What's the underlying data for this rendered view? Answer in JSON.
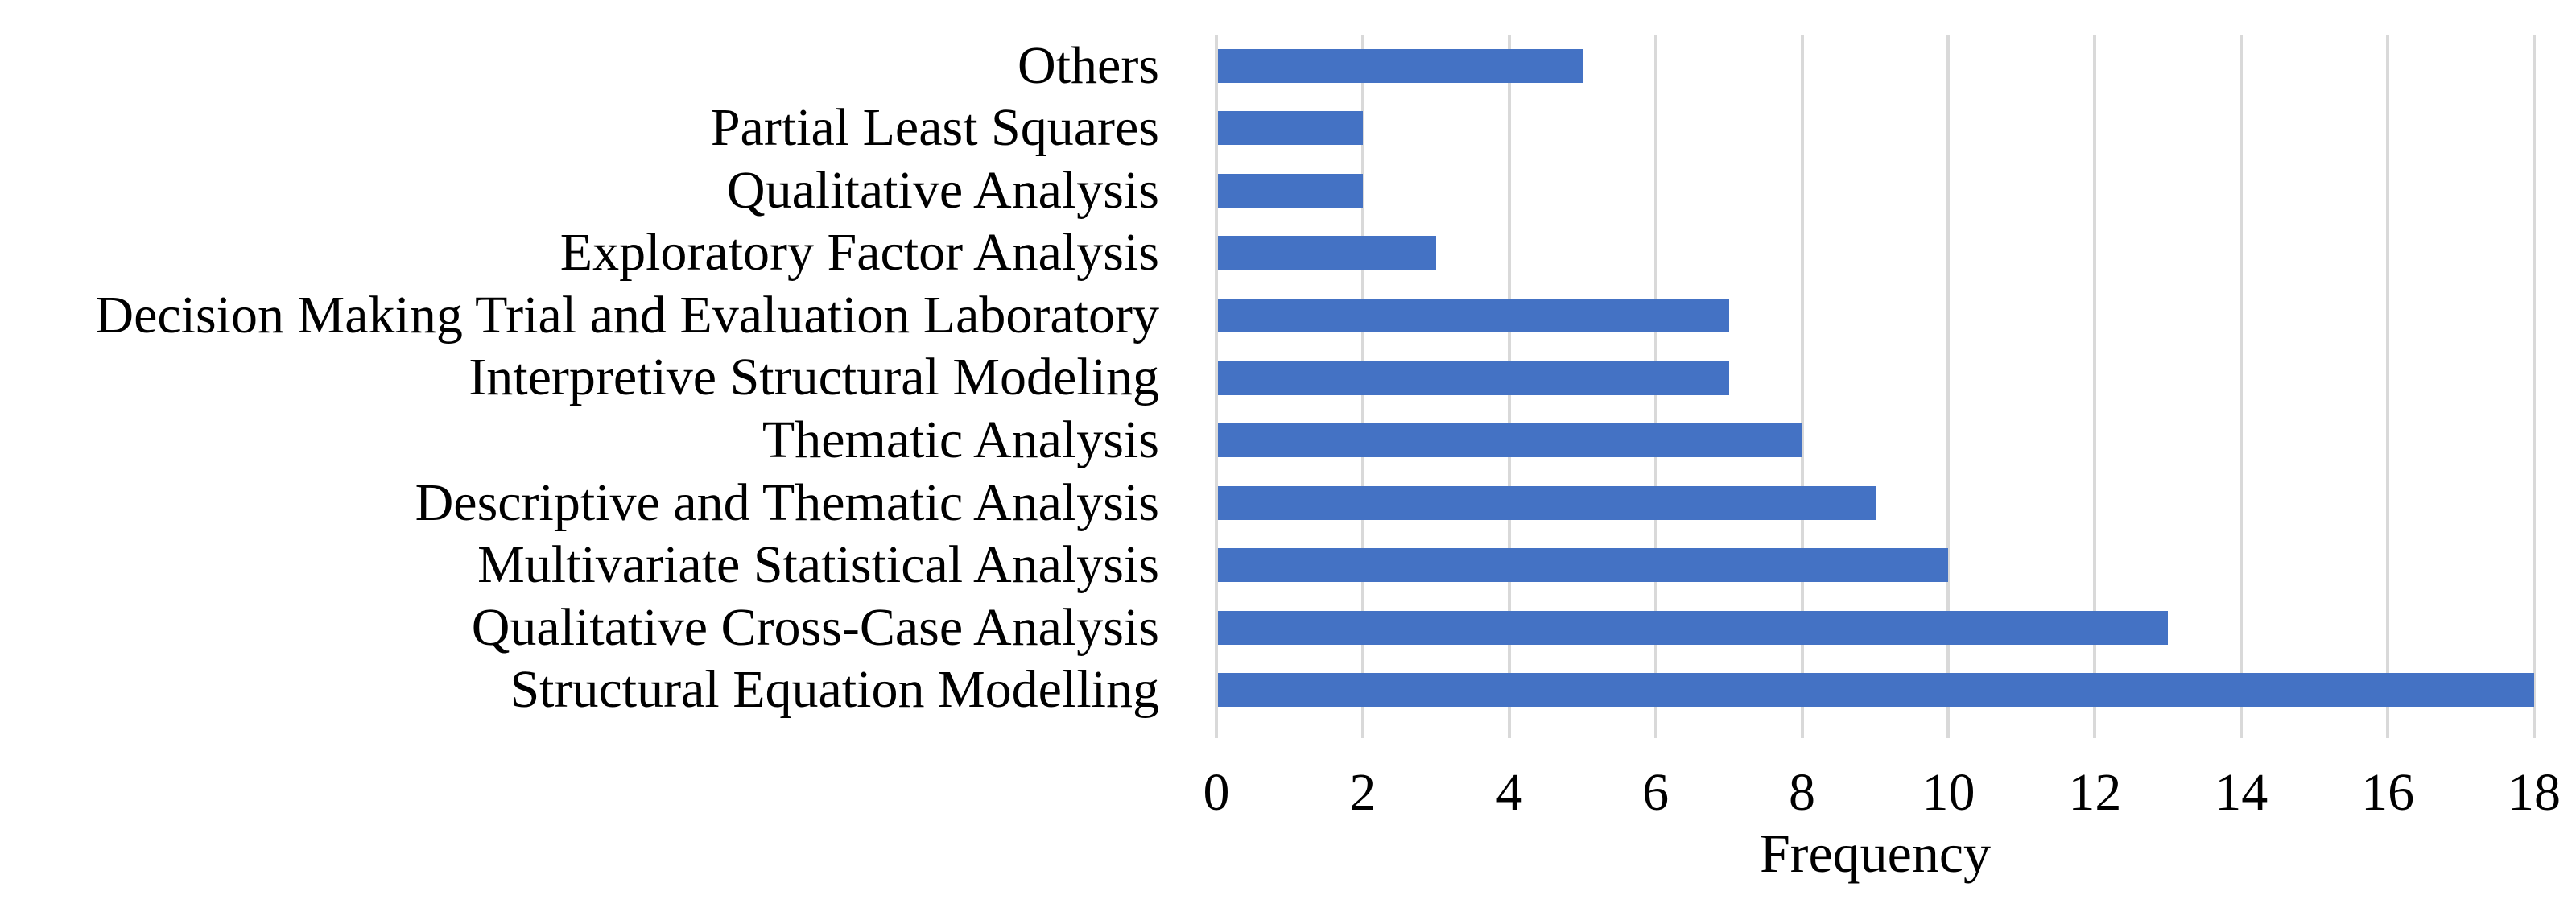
{
  "chart_data": {
    "type": "bar",
    "orientation": "horizontal",
    "title": "",
    "xlabel": "Frequency",
    "ylabel": "",
    "xlim": [
      0,
      18
    ],
    "x_ticks": [
      0,
      2,
      4,
      6,
      8,
      10,
      12,
      14,
      16,
      18
    ],
    "grid": "vertical-gridlines-on",
    "legend": "none",
    "bar_color": "#4472C4",
    "gridline_color": "#D9D9D9",
    "text_color": "#000000",
    "background_color": "#FFFFFF",
    "categories": [
      "Others",
      "Partial Least Squares",
      "Qualitative Analysis",
      "Exploratory Factor Analysis",
      "Decision Making Trial and Evaluation Laboratory",
      "Interpretive Structural Modeling",
      "Thematic Analysis",
      "Descriptive and Thematic Analysis",
      "Multivariate Statistical Analysis",
      "Qualitative Cross-Case Analysis",
      "Structural Equation Modelling"
    ],
    "values": [
      5,
      2,
      2,
      3,
      7,
      7,
      8,
      9,
      10,
      13,
      18
    ]
  }
}
